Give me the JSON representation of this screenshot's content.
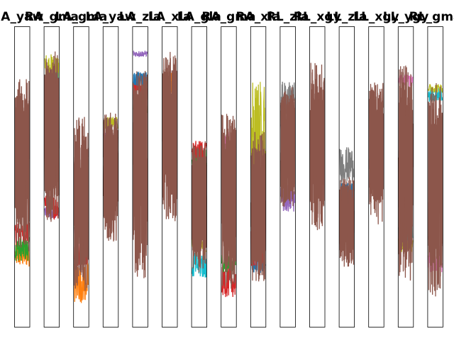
{
  "chart_data": {
    "type": "line",
    "layout": "15 small-multiple panels in one row, no axes or ticks",
    "series_colors": [
      "#1f77b4",
      "#ff7f0e",
      "#2ca02c",
      "#d62728",
      "#9467bd",
      "#8c564b",
      "#e377c2",
      "#7f7f7f",
      "#bcbd22",
      "#17becf"
    ],
    "panels": [
      {
        "title": "A_yaw",
        "dominant_range": [
          0.25,
          0.83
        ],
        "accents": [
          {
            "color_index": 1,
            "range": [
              0.2,
              0.28
            ]
          },
          {
            "color_index": 2,
            "range": [
              0.22,
              0.3
            ]
          },
          {
            "color_index": 3,
            "range": [
              0.28,
              0.35
            ]
          }
        ]
      },
      {
        "title": "RA_gma",
        "dominant_range": [
          0.35,
          0.93
        ],
        "accents": [
          {
            "color_index": 8,
            "range": [
              0.82,
              0.91
            ]
          },
          {
            "color_index": 9,
            "range": [
              0.76,
              0.85
            ]
          },
          {
            "color_index": 4,
            "range": [
              0.36,
              0.4
            ]
          },
          {
            "color_index": 3,
            "range": [
              0.36,
              0.44
            ]
          }
        ]
      },
      {
        "title": "LA_gma",
        "dominant_range": [
          0.12,
          0.7
        ],
        "accents": [
          {
            "color_index": 1,
            "range": [
              0.08,
              0.22
            ]
          },
          {
            "color_index": 3,
            "range": [
              0.2,
              0.29
            ]
          },
          {
            "color_index": 4,
            "range": [
              0.3,
              0.34
            ]
          },
          {
            "color_index": 2,
            "range": [
              0.32,
              0.38
            ]
          }
        ]
      },
      {
        "title": "LA_yaw",
        "dominant_range": [
          0.28,
          0.72
        ],
        "accents": [
          {
            "color_index": 8,
            "range": [
              0.66,
              0.7
            ]
          },
          {
            "color_index": 4,
            "range": [
              0.55,
              0.65
            ]
          }
        ]
      },
      {
        "title": "LA_zla",
        "dominant_range": [
          0.16,
          0.86
        ],
        "accents": [
          {
            "color_index": 4,
            "range": [
              0.9,
              0.92
            ]
          },
          {
            "color_index": 3,
            "range": [
              0.75,
              0.82
            ]
          },
          {
            "color_index": 2,
            "range": [
              0.7,
              0.76
            ]
          },
          {
            "color_index": 0,
            "range": [
              0.8,
              0.85
            ]
          }
        ]
      },
      {
        "title": "LA_xla",
        "dominant_range": [
          0.35,
          0.92
        ],
        "accents": [
          {
            "color_index": 1,
            "range": [
              0.75,
              0.85
            ]
          }
        ]
      },
      {
        "title": "LA_gla",
        "dominant_range": [
          0.18,
          0.62
        ],
        "accents": [
          {
            "color_index": 9,
            "range": [
              0.16,
              0.26
            ]
          },
          {
            "color_index": 8,
            "range": [
              0.24,
              0.3
            ]
          },
          {
            "color_index": 2,
            "range": [
              0.52,
              0.6
            ]
          },
          {
            "color_index": 3,
            "range": [
              0.55,
              0.62
            ]
          }
        ]
      },
      {
        "title": "RA_gma",
        "dominant_range": [
          0.12,
          0.72
        ],
        "accents": [
          {
            "color_index": 3,
            "range": [
              0.1,
              0.2
            ]
          },
          {
            "color_index": 2,
            "range": [
              0.18,
              0.24
            ]
          },
          {
            "color_index": 6,
            "range": [
              0.55,
              0.65
            ]
          }
        ]
      },
      {
        "title": "RA_xla",
        "dominant_range": [
          0.15,
          0.65
        ],
        "accents": [
          {
            "color_index": 8,
            "range": [
              0.42,
              0.82
            ]
          },
          {
            "color_index": 4,
            "range": [
              0.3,
              0.45
            ]
          },
          {
            "color_index": 0,
            "range": [
              0.18,
              0.24
            ]
          },
          {
            "color_index": 3,
            "range": [
              0.2,
              0.35
            ]
          }
        ]
      },
      {
        "title": "RL_zla",
        "dominant_range": [
          0.4,
          0.8
        ],
        "accents": [
          {
            "color_index": 7,
            "range": [
              0.7,
              0.82
            ]
          },
          {
            "color_index": 0,
            "range": [
              0.62,
              0.7
            ]
          },
          {
            "color_index": 4,
            "range": [
              0.38,
              0.48
            ]
          }
        ]
      },
      {
        "title": "RL_xgy",
        "dominant_range": [
          0.32,
          0.88
        ],
        "accents": [
          {
            "color_index": 3,
            "range": [
              0.48,
              0.52
            ]
          }
        ]
      },
      {
        "title": "LL_zla",
        "dominant_range": [
          0.2,
          0.5
        ],
        "accents": [
          {
            "color_index": 7,
            "range": [
              0.48,
              0.6
            ]
          },
          {
            "color_index": 0,
            "range": [
              0.4,
              0.48
            ]
          }
        ]
      },
      {
        "title": "LL_xgy",
        "dominant_range": [
          0.34,
          0.82
        ],
        "accents": []
      },
      {
        "title": "LL_ygy",
        "dominant_range": [
          0.15,
          0.88
        ],
        "accents": [
          {
            "color_index": 8,
            "range": [
              0.25,
              0.3
            ]
          },
          {
            "color_index": 9,
            "range": [
              0.28,
              0.35
            ]
          },
          {
            "color_index": 6,
            "range": [
              0.8,
              0.84
            ]
          }
        ]
      },
      {
        "title": "RL_gma",
        "dominant_range": [
          0.1,
          0.82
        ],
        "accents": [
          {
            "color_index": 6,
            "range": [
              0.18,
              0.28
            ]
          },
          {
            "color_index": 9,
            "range": [
              0.75,
              0.8
            ]
          },
          {
            "color_index": 8,
            "range": [
              0.78,
              0.81
            ]
          }
        ]
      }
    ]
  }
}
